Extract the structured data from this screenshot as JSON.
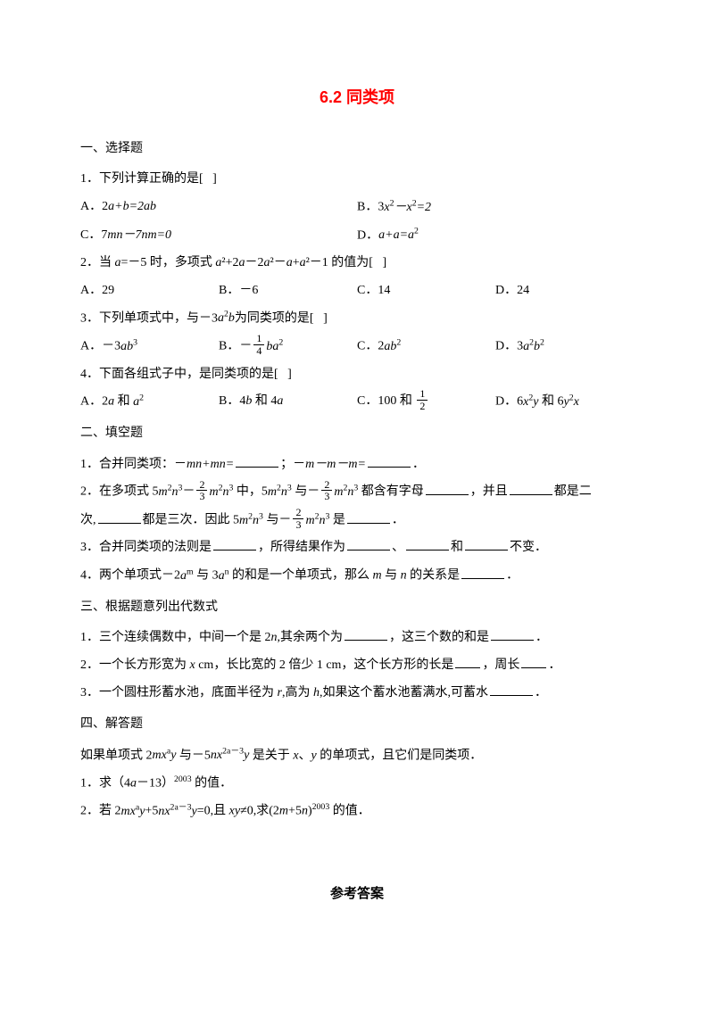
{
  "title": "6.2 同类项",
  "section1": {
    "heading": "一、选择题",
    "q1": {
      "stem_pre": "1．下列计算正确的是[",
      "stem_post": "]",
      "A": "A．2",
      "A_eq": "a+b=2ab",
      "B": "B．3",
      "B_eq": "x²－x²=2",
      "C": "C．7",
      "C_eq": "mn－7nm=0",
      "D": "D．",
      "D_eq": "a+a=a²"
    },
    "q2": {
      "stem_a": "2．当 ",
      "stem_b": "=－5 时，多项式 ",
      "stem_c": "²+2",
      "stem_d": "－2",
      "stem_e": "²－",
      "stem_f": "+",
      "stem_g": "²－1 的值为[",
      "stem_h": "]",
      "A": "A．29",
      "B": "B．－6",
      "C": "C．14",
      "D": "D．24"
    },
    "q3": {
      "stem_a": "3．下列单项式中，与－3",
      "stem_b": "为同类项的是[",
      "stem_c": "]",
      "A": "A．－3",
      "B": "B．－",
      "C": "C．2",
      "D": "D．3"
    },
    "q4": {
      "stem": "4．下面各组式子中，是同类项的是[",
      "stem_end": "]",
      "A_pre": "A．2",
      "A_mid": " 和 ",
      "B_pre": "B．4",
      "B_mid": " 和 4",
      "C_pre": "C．100 和 ",
      "D_pre": "D．6",
      "D_mid": " 和 6"
    }
  },
  "section2": {
    "heading": "二、填空题",
    "q1_a": "1．合并同类项：－",
    "q1_b": "；－",
    "q1_c": "．",
    "q2_a": "2．在多项式 5",
    "q2_b": " 中，5",
    "q2_c": " 与－",
    "q2_d": " 都含有字母",
    "q2_e": "，并且",
    "q2_f": "都是二",
    "q2_g": "次,",
    "q2_h": "都是三次．因此 5",
    "q2_i": " 与－",
    "q2_j": " 是",
    "q2_k": "．",
    "q3_a": "3．合并同类项的法则是",
    "q3_b": "，所得结果作为",
    "q3_c": "、",
    "q3_d": "和",
    "q3_e": "不变．",
    "q4_a": "4．两个单项式－2",
    "q4_b": " 与 3",
    "q4_c": " 的和是一个单项式，那么 ",
    "q4_d": " 与 ",
    "q4_e": " 的关系是",
    "q4_f": "．"
  },
  "section3": {
    "heading": "三、根据题意列出代数式",
    "q1_a": "1．三个连续偶数中，中间一个是 2",
    "q1_b": ",其余两个为",
    "q1_c": "，这三个数的和是",
    "q1_d": "．",
    "q2_a": "2．一个长方形宽为 ",
    "q2_b": " cm，长比宽的 2 倍少 1 cm，这个长方形的长是",
    "q2_c": "，周长",
    "q2_d": "．",
    "q3_a": "3．一个圆柱形蓄水池，底面半径为 ",
    "q3_b": ",高为 ",
    "q3_c": ",如果这个蓄水池蓄满水,可蓄水",
    "q3_d": "．"
  },
  "section4": {
    "heading": "四、解答题",
    "intro_a": "如果单项式 2",
    "intro_b": " 与－5",
    "intro_c": " 是关于 ",
    "intro_d": "、",
    "intro_e": " 的单项式，且它们是同类项．",
    "q1_a": "1．求（4",
    "q1_b": "－13）",
    "q1_c": " 的值．",
    "q2_a": "2．若 2",
    "q2_b": "+5",
    "q2_c": "=0,且 ",
    "q2_d": "≠0,求(2",
    "q2_e": "+5",
    "q2_f": ")",
    "q2_g": " 的值．"
  },
  "answers": "参考答案",
  "vars": {
    "a": "a",
    "b": "b",
    "x": "x",
    "y": "y",
    "m": "m",
    "n": "n",
    "r": "r",
    "h": "h",
    "mn": "mn",
    "nm": "nm",
    "ab": "ab",
    "ba": "ba",
    "sq": "2",
    "cu": "3",
    "exp2003": "2003",
    "exp_2am3": "2a－3"
  },
  "fracs": {
    "one": "1",
    "two": "2",
    "three": "3",
    "four": "4"
  }
}
